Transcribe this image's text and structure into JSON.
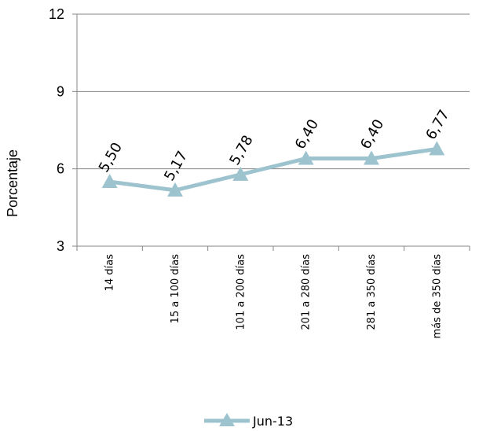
{
  "chart_data": {
    "type": "line",
    "title": "",
    "xlabel": "",
    "ylabel": "Porcentaje",
    "ylim": [
      3,
      12
    ],
    "yticks": [
      3,
      6,
      9,
      12
    ],
    "grid": "horizontal",
    "legend_position": "bottom",
    "categories": [
      "14 días",
      "15 a 100 días",
      "101 a 200 días",
      "201 a 280 días",
      "281 a 350 días",
      "más de  350 días"
    ],
    "series": [
      {
        "name": "Jun-13",
        "color": "#9DC3CF",
        "marker": "triangle",
        "values": [
          5.5,
          5.17,
          5.78,
          6.4,
          6.4,
          6.77
        ],
        "labels": [
          "5,50",
          "5,17",
          "5,78",
          "6,40",
          "6,40",
          "6,77"
        ]
      }
    ]
  }
}
